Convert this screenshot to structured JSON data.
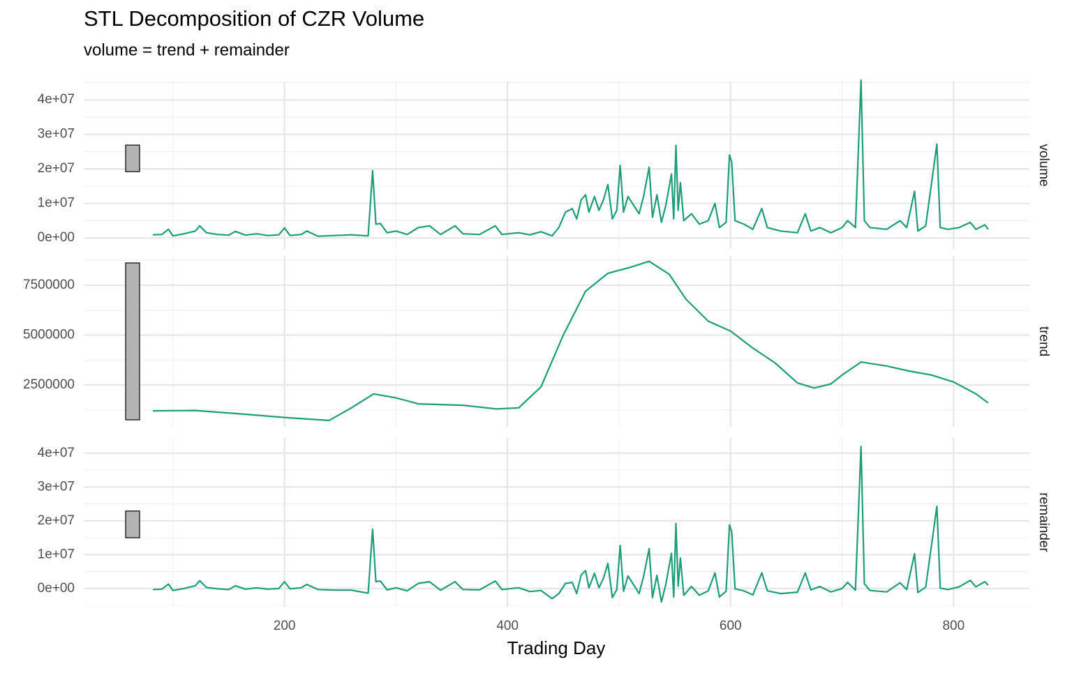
{
  "title": "STL Decomposition of CZR Volume",
  "subtitle": "volume = trend + remainder",
  "x_label": "Trading Day",
  "xlim": [
    20,
    868
  ],
  "xticks": [
    200,
    400,
    600,
    800
  ],
  "grid": true,
  "chart_data": [
    {
      "type": "line",
      "facet": "volume",
      "color": "#1b9e77",
      "ylim": [
        -3200000,
        45300000
      ],
      "yticks": [
        {
          "value": 0,
          "label": "0e+00"
        },
        {
          "value": 10000000,
          "label": "1e+07"
        },
        {
          "value": 20000000,
          "label": "2e+07"
        },
        {
          "value": 30000000,
          "label": "3e+07"
        },
        {
          "value": 40000000,
          "label": "4e+07"
        }
      ],
      "scale_bar": [
        19200000,
        26900000
      ],
      "x": [
        82,
        90,
        96,
        100,
        110,
        120,
        124,
        130,
        140,
        150,
        156,
        165,
        175,
        185,
        195,
        200,
        205,
        215,
        220,
        230,
        245,
        260,
        275,
        279,
        282,
        286,
        292,
        300,
        310,
        320,
        330,
        340,
        353,
        360,
        375,
        389,
        395,
        410,
        420,
        430,
        440,
        446,
        452,
        458,
        462,
        466,
        470,
        473,
        478,
        482,
        486,
        490,
        494,
        498,
        501,
        504,
        508,
        514,
        518,
        522,
        527,
        530,
        534,
        538,
        542,
        547,
        549,
        551,
        553,
        555,
        558,
        565,
        572,
        580,
        586,
        590,
        596,
        599,
        601,
        604,
        612,
        620,
        628,
        633,
        645,
        660,
        667,
        672,
        680,
        690,
        700,
        705,
        712,
        717,
        720,
        725,
        740,
        752,
        758,
        765,
        768,
        775,
        785,
        788,
        795,
        805,
        815,
        820,
        828,
        831
      ],
      "values": [
        900000,
        1000000,
        2500000,
        600000,
        1200000,
        2000000,
        3500000,
        1500000,
        1000000,
        800000,
        1900000,
        800000,
        1200000,
        700000,
        900000,
        2900000,
        700000,
        1000000,
        2000000,
        500000,
        700000,
        900000,
        600000,
        19500000,
        4000000,
        4200000,
        1500000,
        2000000,
        1000000,
        3000000,
        3500000,
        1000000,
        3500000,
        1200000,
        1000000,
        3500000,
        1000000,
        1500000,
        900000,
        1800000,
        600000,
        3000000,
        7500000,
        8500000,
        5500000,
        11000000,
        12500000,
        7500000,
        12000000,
        8000000,
        11000000,
        15500000,
        5500000,
        8000000,
        21000000,
        7500000,
        12000000,
        9000000,
        7000000,
        12000000,
        20500000,
        6000000,
        12500000,
        4500000,
        9500000,
        18500000,
        5500000,
        26800000,
        8000000,
        16000000,
        5000000,
        7000000,
        4000000,
        5000000,
        10000000,
        3000000,
        4500000,
        24000000,
        22000000,
        5000000,
        4000000,
        2500000,
        8500000,
        3000000,
        2000000,
        1500000,
        7000000,
        2000000,
        3000000,
        1500000,
        3000000,
        5000000,
        3000000,
        45700000,
        5000000,
        3000000,
        2500000,
        5000000,
        3000000,
        13500000,
        2000000,
        3500000,
        27200000,
        3000000,
        2500000,
        3000000,
        4500000,
        2500000,
        3800000,
        2500000
      ]
    },
    {
      "type": "line",
      "facet": "trend",
      "color": "#1b9e77",
      "ylim": [
        400000,
        8970000
      ],
      "yticks": [
        2500000,
        5000000,
        7500000
      ],
      "scale_bar": [
        750000,
        8620000
      ],
      "x": [
        82,
        120,
        160,
        200,
        240,
        260,
        280,
        300,
        320,
        360,
        390,
        410,
        430,
        450,
        470,
        490,
        510,
        527,
        545,
        560,
        580,
        600,
        620,
        640,
        660,
        675,
        690,
        700,
        717,
        740,
        760,
        780,
        800,
        820,
        831
      ],
      "values": [
        1200000,
        1220000,
        1050000,
        870000,
        720000,
        1350000,
        2050000,
        1850000,
        1550000,
        1480000,
        1300000,
        1350000,
        2400000,
        5000000,
        7200000,
        8100000,
        8400000,
        8700000,
        8050000,
        6800000,
        5700000,
        5200000,
        4350000,
        3600000,
        2600000,
        2350000,
        2550000,
        3000000,
        3650000,
        3450000,
        3200000,
        3000000,
        2650000,
        2050000,
        1600000
      ]
    },
    {
      "type": "line",
      "facet": "remainder",
      "color": "#1b9e77",
      "ylim": [
        -5400000,
        44500000
      ],
      "yticks": [
        {
          "value": 0,
          "label": "0e+00"
        },
        {
          "value": 10000000,
          "label": "1e+07"
        },
        {
          "value": 20000000,
          "label": "2e+07"
        },
        {
          "value": 30000000,
          "label": "3e+07"
        },
        {
          "value": 40000000,
          "label": "4e+07"
        }
      ],
      "scale_bar": [
        15000000,
        22900000
      ],
      "x": [
        82,
        90,
        96,
        100,
        110,
        120,
        124,
        130,
        140,
        150,
        156,
        165,
        175,
        185,
        195,
        200,
        205,
        215,
        220,
        230,
        245,
        260,
        275,
        279,
        282,
        286,
        292,
        300,
        310,
        320,
        330,
        340,
        353,
        360,
        375,
        389,
        395,
        410,
        420,
        430,
        440,
        446,
        452,
        458,
        462,
        466,
        470,
        473,
        478,
        482,
        486,
        490,
        494,
        498,
        501,
        504,
        508,
        514,
        518,
        522,
        527,
        530,
        534,
        538,
        542,
        547,
        549,
        551,
        553,
        555,
        558,
        565,
        572,
        580,
        586,
        590,
        596,
        599,
        601,
        604,
        612,
        620,
        628,
        633,
        645,
        660,
        667,
        672,
        680,
        690,
        700,
        705,
        712,
        717,
        720,
        725,
        740,
        752,
        758,
        765,
        768,
        775,
        785,
        788,
        795,
        805,
        815,
        820,
        828,
        831
      ],
      "values": [
        -300000,
        -200000,
        1300000,
        -600000,
        0,
        800000,
        2300000,
        300000,
        -100000,
        -300000,
        800000,
        -200000,
        200000,
        -200000,
        0,
        2000000,
        -100000,
        200000,
        1200000,
        -300000,
        -500000,
        -500000,
        -1400000,
        17500000,
        2000000,
        2200000,
        -400000,
        200000,
        -700000,
        1500000,
        2000000,
        -500000,
        2000000,
        -300000,
        -400000,
        2200000,
        -300000,
        200000,
        -900000,
        -600000,
        -3000000,
        -1500000,
        1500000,
        1800000,
        -1500000,
        4000000,
        5300000,
        200000,
        4500000,
        200000,
        3000000,
        7400000,
        -2700000,
        -300000,
        12700000,
        -800000,
        3700000,
        600000,
        -1500000,
        3500000,
        11800000,
        -2700000,
        3900000,
        -4000000,
        1300000,
        10400000,
        -2500000,
        19200000,
        700000,
        9000000,
        -2000000,
        600000,
        -2000000,
        -700000,
        4600000,
        -2500000,
        -800000,
        18800000,
        16800000,
        -100000,
        -700000,
        -1900000,
        4600000,
        -700000,
        -1500000,
        -1100000,
        4600000,
        -400000,
        600000,
        -1000000,
        0,
        1800000,
        -500000,
        42000000,
        1400000,
        -600000,
        -1000000,
        1700000,
        -300000,
        10300000,
        -1200000,
        400000,
        24300000,
        100000,
        -300000,
        500000,
        2400000,
        500000,
        2000000,
        1000000
      ]
    }
  ]
}
